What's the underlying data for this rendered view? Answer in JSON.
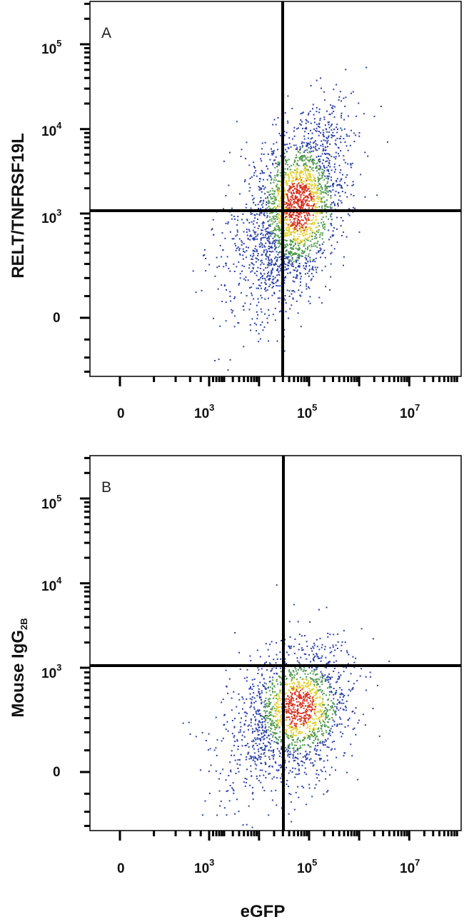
{
  "xlabel": "eGFP",
  "colors": {
    "low": "#2b3fa8",
    "mid": "#4f9a4c",
    "high": "#e2d33a",
    "peak": "#d8301f",
    "frame": "#000000"
  },
  "chart_data": [
    {
      "type": "scatter",
      "panel": "A",
      "scale": "biexponential",
      "ylabel": "RELT/TNFRSF19L",
      "ylabel_sub": "",
      "x_ticks": [
        {
          "base": "0",
          "exp": ""
        },
        {
          "base": "10",
          "exp": "3"
        },
        {
          "base": "10",
          "exp": "5"
        },
        {
          "base": "10",
          "exp": "7"
        }
      ],
      "y_ticks": [
        {
          "base": "0",
          "exp": ""
        },
        {
          "base": "10",
          "exp": "3"
        },
        {
          "base": "10",
          "exp": "4"
        },
        {
          "base": "10",
          "exp": "5"
        }
      ],
      "quadrant_gate": {
        "x": 20000,
        "y": 1000
      },
      "population_center": {
        "x": 60000,
        "y": 1300
      },
      "events": 2600
    },
    {
      "type": "scatter",
      "panel": "B",
      "scale": "biexponential",
      "ylabel": "Mouse IgG",
      "ylabel_sub": "2B",
      "x_ticks": [
        {
          "base": "0",
          "exp": ""
        },
        {
          "base": "10",
          "exp": "3"
        },
        {
          "base": "10",
          "exp": "5"
        },
        {
          "base": "10",
          "exp": "7"
        }
      ],
      "y_ticks": [
        {
          "base": "0",
          "exp": ""
        },
        {
          "base": "10",
          "exp": "3"
        },
        {
          "base": "10",
          "exp": "4"
        },
        {
          "base": "10",
          "exp": "5"
        }
      ],
      "quadrant_gate": {
        "x": 20000,
        "y": 1000
      },
      "population_center": {
        "x": 60000,
        "y": 400
      },
      "events": 1900
    }
  ]
}
